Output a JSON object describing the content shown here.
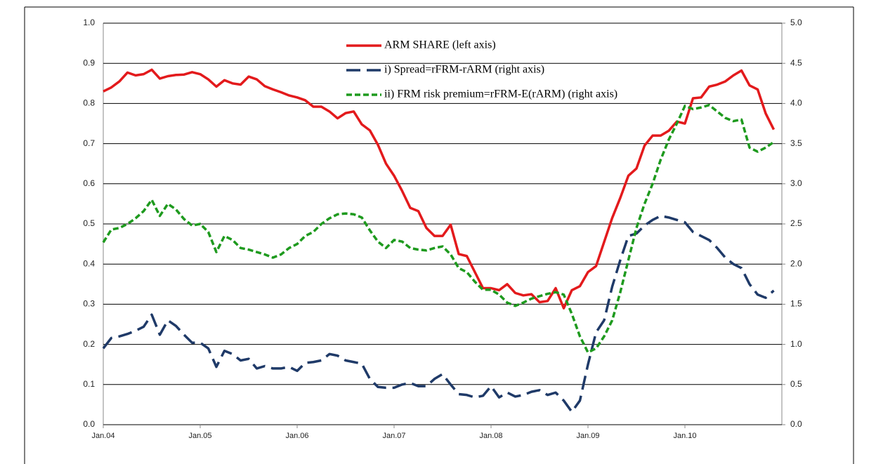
{
  "chart_data": {
    "type": "line",
    "categories": [
      "Jan.04",
      null,
      null,
      null,
      null,
      null,
      null,
      null,
      null,
      null,
      null,
      null,
      "Jan.05",
      null,
      null,
      null,
      null,
      null,
      null,
      null,
      null,
      null,
      null,
      null,
      "Jan.06",
      null,
      null,
      null,
      null,
      null,
      null,
      null,
      null,
      null,
      null,
      null,
      "Jan.07",
      null,
      null,
      null,
      null,
      null,
      null,
      null,
      null,
      null,
      null,
      null,
      "Jan.08",
      null,
      null,
      null,
      null,
      null,
      null,
      null,
      null,
      null,
      null,
      null,
      "Jan.09",
      null,
      null,
      null,
      null,
      null,
      null,
      null,
      null,
      null,
      null,
      null,
      "Jan.10",
      null,
      null,
      null,
      null,
      null,
      null,
      null,
      null,
      null,
      null,
      null
    ],
    "series": [
      {
        "name": "ARM SHARE (left axis)",
        "color": "#e31a1c",
        "dash": "solid",
        "values": [
          0.83,
          0.84,
          0.855,
          0.877,
          0.87,
          0.873,
          0.884,
          0.862,
          0.868,
          0.871,
          0.872,
          0.878,
          0.873,
          0.86,
          0.842,
          0.858,
          0.85,
          0.847,
          0.867,
          0.86,
          0.843,
          0.835,
          0.828,
          0.82,
          0.815,
          0.808,
          0.792,
          0.792,
          0.78,
          0.763,
          0.776,
          0.78,
          0.748,
          0.733,
          0.697,
          0.65,
          0.62,
          0.582,
          0.54,
          0.532,
          0.49,
          0.47,
          0.47,
          0.498,
          0.425,
          0.42,
          0.38,
          0.34,
          0.34,
          0.335,
          0.35,
          0.328,
          0.322,
          0.325,
          0.305,
          0.308,
          0.34,
          0.29,
          0.335,
          0.345,
          0.38,
          0.395,
          0.455,
          0.515,
          0.565,
          0.62,
          0.638,
          0.695,
          0.72,
          0.72,
          0.732,
          0.755,
          0.75,
          0.813,
          0.815,
          0.842,
          0.847,
          0.855,
          0.87,
          0.882,
          0.845,
          0.835,
          0.775,
          0.735
        ]
      },
      {
        "name": "i) Spread=rFRM-rARM (right axis)",
        "color": "#1f3a68",
        "dash": "long",
        "axis": "y2",
        "values": [
          0.95,
          1.08,
          1.1,
          1.13,
          1.17,
          1.22,
          1.37,
          1.12,
          1.3,
          1.23,
          1.12,
          1.02,
          1.02,
          0.95,
          0.72,
          0.92,
          0.88,
          0.8,
          0.82,
          0.7,
          0.73,
          0.7,
          0.7,
          0.72,
          0.67,
          0.77,
          0.78,
          0.8,
          0.88,
          0.86,
          0.8,
          0.78,
          0.76,
          0.57,
          0.47,
          0.46,
          0.46,
          0.5,
          0.52,
          0.48,
          0.48,
          0.57,
          0.63,
          0.5,
          0.38,
          0.37,
          0.34,
          0.36,
          0.48,
          0.34,
          0.4,
          0.35,
          0.37,
          0.41,
          0.43,
          0.37,
          0.4,
          0.3,
          0.16,
          0.3,
          0.75,
          1.15,
          1.3,
          1.72,
          2.05,
          2.35,
          2.38,
          2.48,
          2.55,
          2.6,
          2.58,
          2.55,
          2.52,
          2.4,
          2.35,
          2.3,
          2.2,
          2.08,
          2.0,
          1.95,
          1.75,
          1.62,
          1.58,
          1.67
        ]
      },
      {
        "name": "ii) FRM risk premium=rFRM-E(rARM) (right axis)",
        "color": "#1e9a1e",
        "dash": "short",
        "axis": "y2",
        "values": [
          2.27,
          2.43,
          2.45,
          2.5,
          2.57,
          2.66,
          2.8,
          2.6,
          2.75,
          2.68,
          2.56,
          2.48,
          2.5,
          2.4,
          2.15,
          2.35,
          2.3,
          2.2,
          2.18,
          2.15,
          2.12,
          2.08,
          2.12,
          2.2,
          2.25,
          2.35,
          2.4,
          2.5,
          2.57,
          2.62,
          2.63,
          2.62,
          2.58,
          2.42,
          2.28,
          2.2,
          2.3,
          2.28,
          2.2,
          2.18,
          2.17,
          2.2,
          2.22,
          2.12,
          1.95,
          1.9,
          1.78,
          1.68,
          1.68,
          1.62,
          1.52,
          1.48,
          1.52,
          1.57,
          1.6,
          1.63,
          1.65,
          1.62,
          1.38,
          1.1,
          0.9,
          0.95,
          1.1,
          1.3,
          1.65,
          2.05,
          2.45,
          2.75,
          3.0,
          3.3,
          3.55,
          3.75,
          3.97,
          3.93,
          3.95,
          3.98,
          3.9,
          3.82,
          3.78,
          3.8,
          3.45,
          3.4,
          3.45,
          3.52
        ]
      }
    ],
    "ylim": [
      0,
      1
    ],
    "yticks": [
      {
        "value": 0,
        "label": "0.0"
      },
      0.1,
      0.2,
      0.3,
      0.4,
      0.5,
      0.6,
      0.7,
      0.8,
      0.9,
      {
        "value": 1,
        "label": "1.0"
      }
    ],
    "y2lim": [
      0,
      5
    ],
    "y2ticks": [
      {
        "value": 0,
        "label": "0.0"
      },
      0.5,
      {
        "value": 1,
        "label": "1.0"
      },
      1.5,
      {
        "value": 2,
        "label": "2.0"
      },
      2.5,
      {
        "value": 3,
        "label": "3.0"
      },
      3.5,
      {
        "value": 4,
        "label": "4.0"
      },
      4.5,
      {
        "value": 5,
        "label": "5.0"
      }
    ],
    "grid": true,
    "legend": "upper center"
  }
}
